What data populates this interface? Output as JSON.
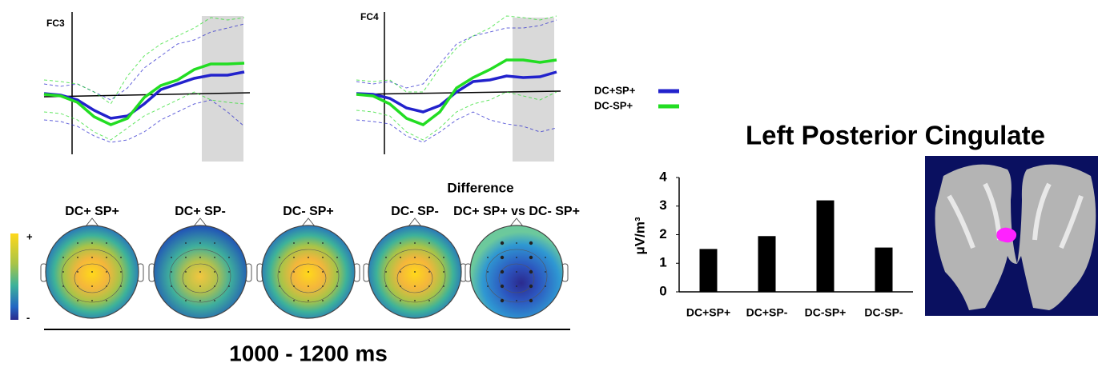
{
  "chart_data": [
    {
      "type": "line",
      "title": "FC3",
      "ylim": [
        -8,
        10
      ],
      "series": [
        {
          "name": "DC+SP+",
          "color": "#2222cc",
          "values": [
            0.3,
            0.1,
            -0.5,
            -1.8,
            -2.8,
            -2.5,
            -1.0,
            0.8,
            1.5,
            2.2,
            2.6,
            2.6,
            3.0
          ],
          "lower": [
            -3.0,
            -3.2,
            -3.8,
            -5.0,
            -5.8,
            -5.5,
            -4.5,
            -3.0,
            -2.0,
            -1.0,
            -0.5,
            -2.0,
            -3.8
          ],
          "upper": [
            1.5,
            1.2,
            1.5,
            0.5,
            -0.5,
            1.0,
            3.5,
            5.0,
            6.5,
            7.0,
            8.0,
            8.5,
            9.0
          ]
        },
        {
          "name": "DC-SP+",
          "color": "#22dd22",
          "values": [
            0.2,
            0.0,
            -0.8,
            -2.6,
            -3.6,
            -2.8,
            -0.2,
            1.3,
            2.0,
            3.3,
            4.0,
            4.0,
            4.1
          ],
          "lower": [
            -2.0,
            -2.2,
            -3.0,
            -4.5,
            -5.5,
            -4.0,
            -2.5,
            -1.5,
            -0.5,
            0.5,
            -0.5,
            -0.8,
            -1.0
          ],
          "upper": [
            2.0,
            1.8,
            1.5,
            0.5,
            -1.0,
            2.5,
            5.0,
            6.5,
            7.5,
            8.5,
            9.8,
            9.5,
            9.8
          ]
        }
      ]
    },
    {
      "type": "line",
      "title": "FC4",
      "ylim": [
        -8,
        10
      ],
      "series": [
        {
          "color": "#2222cc",
          "values": [
            0.3,
            0.2,
            -0.3,
            -1.5,
            -2.0,
            -1.2,
            0.5,
            1.8,
            2.0,
            2.5,
            2.3,
            2.4,
            3.0
          ],
          "lower": [
            -3.0,
            -3.2,
            -3.5,
            -5.0,
            -5.8,
            -4.5,
            -3.0,
            -2.0,
            -3.0,
            -3.5,
            -3.8,
            -4.5,
            -4.0
          ],
          "upper": [
            1.8,
            1.5,
            1.8,
            1.0,
            1.5,
            4.0,
            6.5,
            7.5,
            8.0,
            8.5,
            8.5,
            8.8,
            9.5
          ]
        },
        {
          "color": "#22dd22",
          "values": [
            0.2,
            0.0,
            -1.0,
            -2.8,
            -3.6,
            -2.0,
            1.0,
            2.3,
            3.3,
            4.5,
            4.5,
            4.2,
            4.5
          ],
          "lower": [
            -1.8,
            -2.0,
            -2.5,
            -4.5,
            -5.5,
            -4.0,
            -2.0,
            -1.0,
            -0.5,
            0.5,
            0.0,
            -0.5,
            0.5
          ],
          "upper": [
            2.0,
            1.8,
            2.0,
            0.5,
            0.5,
            3.5,
            6.0,
            7.5,
            8.5,
            10.0,
            9.8,
            9.5,
            10.0
          ]
        }
      ]
    },
    {
      "type": "bar",
      "title": "Left Posterior Cingulate",
      "y_label": "μV/m³",
      "categories": [
        "DC+SP+",
        "DC+SP-",
        "DC-SP+",
        "DC-SP-"
      ],
      "values": [
        1.5,
        1.95,
        3.2,
        1.55
      ],
      "color": "#000000",
      "ylim": [
        0,
        4
      ],
      "yticks": [
        0,
        1,
        2,
        3,
        4
      ]
    }
  ],
  "topomaps": {
    "labels": [
      "DC+ SP+",
      "DC+ SP-",
      "DC- SP+",
      "DC- SP-",
      "DC+ SP+ vs DC- SP+"
    ],
    "difference_title": "Difference",
    "colorbar": {
      "max_label": "+",
      "min_label": "-"
    },
    "time_window": "1000 - 1200 ms"
  }
}
